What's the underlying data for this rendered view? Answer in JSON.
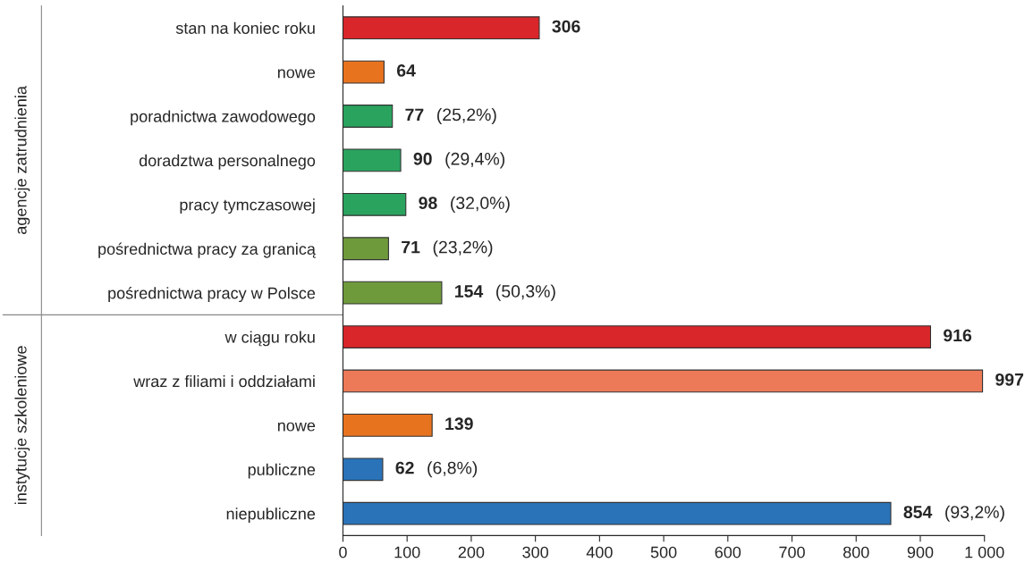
{
  "chart_data": {
    "type": "bar",
    "orientation": "horizontal",
    "categories": [
      "stan na koniec roku",
      "nowe",
      "poradnictwa zawodowego",
      "doradztwa personalnego",
      "pracy tymczasowej",
      "pośrednictwa pracy za granicą",
      "pośrednictwa pracy w Polsce",
      "w ciągu roku",
      "wraz z filiami i oddziałami",
      "nowe",
      "publiczne",
      "niepubliczne"
    ],
    "values": [
      306,
      64,
      77,
      90,
      98,
      71,
      154,
      916,
      997,
      139,
      62,
      854
    ],
    "colors": [
      "#d9262b",
      "#e8731f",
      "#2aa35f",
      "#2aa35f",
      "#2aa35f",
      "#6f9a3c",
      "#6f9a3c",
      "#d9262b",
      "#ec7a58",
      "#e8731f",
      "#2a73b8",
      "#2a73b8"
    ],
    "value_labels": [
      "306",
      "64",
      "77  (25,2%)",
      "90  (29,4%)",
      "98  (32,0%)",
      "71  (23,2%)",
      "154  (50,3%)",
      "916",
      "997",
      "139",
      "62  (6,8%)",
      "854  (93,2%)"
    ],
    "xlim": [
      0,
      1000
    ],
    "xticks": [
      0,
      100,
      200,
      300,
      400,
      500,
      600,
      700,
      800,
      900,
      {
        "value": 1000,
        "label": "1 000"
      }
    ],
    "annotations": [
      "agencje zatrudnienia",
      "instytucje szkoleniowe"
    ],
    "grid": false,
    "legend": false
  }
}
